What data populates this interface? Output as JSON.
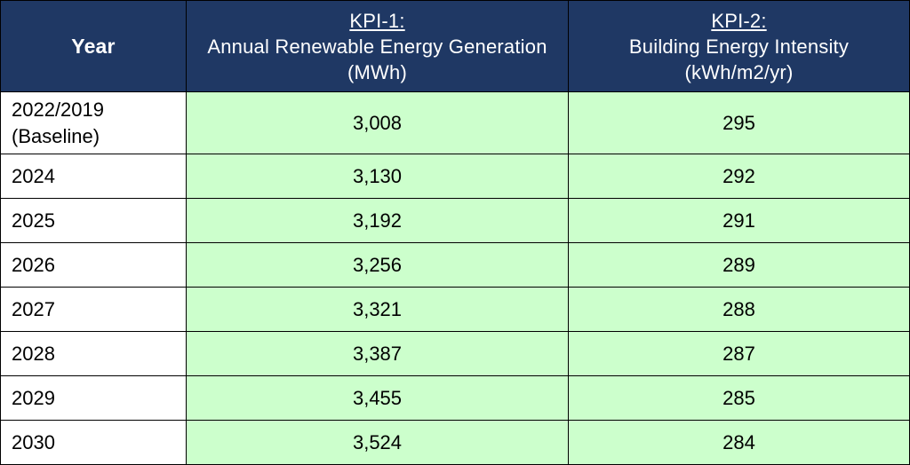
{
  "table": {
    "headers": {
      "year": "Year",
      "kpi1": {
        "code": "KPI-1:",
        "name": "Annual Renewable Energy Generation",
        "unit": "(MWh)"
      },
      "kpi2": {
        "code": "KPI-2:",
        "name": "Building Energy Intensity",
        "unit": "(kWh/m2/yr)"
      }
    },
    "rows": [
      {
        "year_line1": "2022/2019",
        "year_line2": "(Baseline)",
        "kpi1": "3,008",
        "kpi2": "295"
      },
      {
        "year": "2024",
        "kpi1": "3,130",
        "kpi2": "292"
      },
      {
        "year": "2025",
        "kpi1": "3,192",
        "kpi2": "291"
      },
      {
        "year": "2026",
        "kpi1": "3,256",
        "kpi2": "289"
      },
      {
        "year": "2027",
        "kpi1": "3,321",
        "kpi2": "288"
      },
      {
        "year": "2028",
        "kpi1": "3,387",
        "kpi2": "287"
      },
      {
        "year": "2029",
        "kpi1": "3,455",
        "kpi2": "285"
      },
      {
        "year": "2030",
        "kpi1": "3,524",
        "kpi2": "284"
      }
    ]
  },
  "colors": {
    "header_background": "#1f3864",
    "header_text": "#ffffff",
    "value_cell_background": "#ccffcc",
    "year_cell_background": "#ffffff",
    "border": "#000000"
  }
}
